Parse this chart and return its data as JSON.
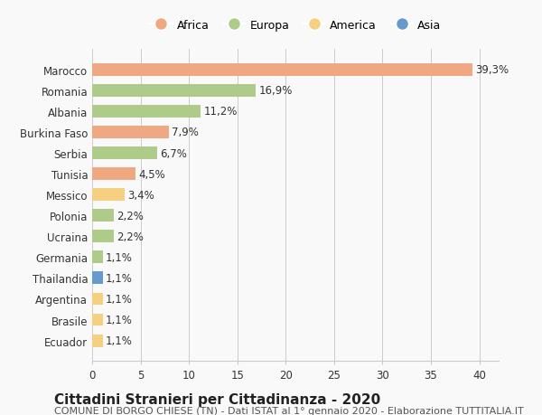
{
  "countries": [
    "Marocco",
    "Romania",
    "Albania",
    "Burkina Faso",
    "Serbia",
    "Tunisia",
    "Messico",
    "Polonia",
    "Ucraina",
    "Germania",
    "Thailandia",
    "Argentina",
    "Brasile",
    "Ecuador"
  ],
  "values": [
    39.3,
    16.9,
    11.2,
    7.9,
    6.7,
    4.5,
    3.4,
    2.2,
    2.2,
    1.1,
    1.1,
    1.1,
    1.1,
    1.1
  ],
  "labels": [
    "39,3%",
    "16,9%",
    "11,2%",
    "7,9%",
    "6,7%",
    "4,5%",
    "3,4%",
    "2,2%",
    "2,2%",
    "1,1%",
    "1,1%",
    "1,1%",
    "1,1%",
    "1,1%"
  ],
  "continents": [
    "Africa",
    "Europa",
    "Europa",
    "Africa",
    "Europa",
    "Africa",
    "America",
    "Europa",
    "Europa",
    "Europa",
    "Asia",
    "America",
    "America",
    "America"
  ],
  "colors": {
    "Africa": "#F0A882",
    "Europa": "#AECB8A",
    "America": "#F5D080",
    "Asia": "#6699CC"
  },
  "legend_order": [
    "Africa",
    "Europa",
    "America",
    "Asia"
  ],
  "legend_colors": {
    "Africa": "#F0A882",
    "Europa": "#AECB8A",
    "America": "#F5D080",
    "Asia": "#6699CC"
  },
  "xlim": [
    0,
    42
  ],
  "xticks": [
    0,
    5,
    10,
    15,
    20,
    25,
    30,
    35,
    40
  ],
  "title": "Cittadini Stranieri per Cittadinanza - 2020",
  "subtitle": "COMUNE DI BORGO CHIESE (TN) - Dati ISTAT al 1° gennaio 2020 - Elaborazione TUTTITALIA.IT",
  "background_color": "#f9f9f9",
  "bar_height": 0.6,
  "label_fontsize": 8.5,
  "title_fontsize": 11,
  "subtitle_fontsize": 8,
  "tick_fontsize": 8.5
}
